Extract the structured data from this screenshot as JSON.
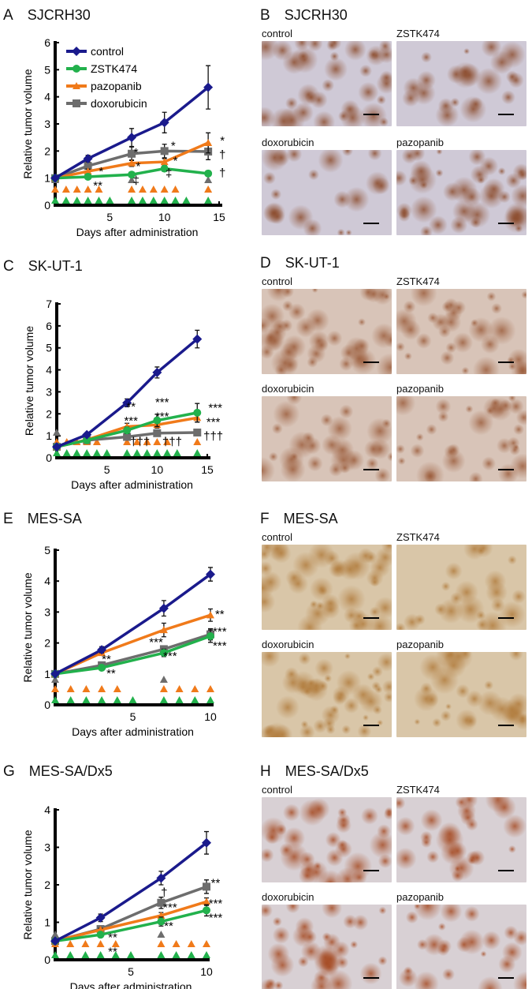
{
  "colors": {
    "control": "#1a1a8c",
    "ZSTK474": "#22b14c",
    "pazopanib": "#f07a1a",
    "doxorubicin": "#6d6d6d"
  },
  "chart_data": [
    {
      "panel": "A",
      "title": "SJCRH30",
      "type": "line",
      "xlabel": "Days after administration",
      "ylabel": "Relative tumor volume",
      "xlim": [
        0,
        15
      ],
      "ylim": [
        0,
        6
      ],
      "xticks": [
        5,
        10,
        15
      ],
      "yticks": [
        0,
        1,
        2,
        3,
        4,
        5,
        6
      ],
      "legend": "top-left",
      "series": [
        {
          "name": "control",
          "marker": "diamond",
          "x": [
            0,
            3,
            7,
            10,
            14
          ],
          "y": [
            1,
            1.72,
            2.5,
            3.05,
            4.35
          ],
          "err": [
            0,
            0.12,
            0.33,
            0.38,
            0.8
          ]
        },
        {
          "name": "ZSTK474",
          "marker": "circle",
          "x": [
            0,
            3,
            7,
            10,
            14
          ],
          "y": [
            1,
            1.05,
            1.13,
            1.35,
            1.17
          ],
          "err": [
            0,
            0.05,
            0.08,
            0.1,
            0.1
          ]
        },
        {
          "name": "pazopanib",
          "marker": "triangle",
          "x": [
            0,
            3,
            7,
            10,
            14
          ],
          "y": [
            1,
            1.25,
            1.55,
            1.6,
            2.3
          ],
          "err": [
            0,
            0.08,
            0.12,
            0.12,
            0.37
          ]
        },
        {
          "name": "doxorubicin",
          "marker": "square",
          "x": [
            0,
            3,
            7,
            10,
            14
          ],
          "y": [
            1,
            1.45,
            1.9,
            2.0,
            1.98
          ],
          "err": [
            0,
            0.1,
            0.25,
            0.25,
            0.3
          ]
        }
      ],
      "dosing": {
        "doxorubicin": [
          0,
          7,
          14
        ],
        "pazopanib": [
          0,
          1,
          2,
          3,
          4,
          7,
          8,
          9,
          10,
          11,
          14
        ],
        "ZSTK474": [
          0,
          1,
          2,
          3,
          4,
          5,
          7,
          8,
          9,
          10,
          11,
          12,
          14
        ]
      },
      "annotations": [
        {
          "text": "*",
          "x": 4.2,
          "y": 1.1
        },
        {
          "text": "**",
          "x": 3.9,
          "y": 0.75
        },
        {
          "text": "*",
          "x": 7.6,
          "y": 1.3
        },
        {
          "text": "*",
          "x": 7.4,
          "y": 1.8
        },
        {
          "text": "‡",
          "x": 7.4,
          "y": 0.95
        },
        {
          "text": "*",
          "x": 10.8,
          "y": 2.05
        },
        {
          "text": "*",
          "x": 11,
          "y": 1.5
        },
        {
          "text": "‡",
          "x": 10.4,
          "y": 1.05
        },
        {
          "text": "*",
          "x": 15.3,
          "y": 2.25
        },
        {
          "text": "†",
          "x": 15.3,
          "y": 1.8
        },
        {
          "text": "†",
          "x": 15.3,
          "y": 1.05
        }
      ]
    },
    {
      "panel": "C",
      "title": "SK-UT-1",
      "type": "line",
      "xlabel": "Days after administration",
      "ylabel": "Relative tumor volume",
      "xlim": [
        0,
        15
      ],
      "ylim": [
        0,
        7
      ],
      "xticks": [
        5,
        10,
        15
      ],
      "yticks": [
        0,
        1,
        2,
        3,
        4,
        5,
        6,
        7
      ],
      "series": [
        {
          "name": "control",
          "marker": "diamond",
          "x": [
            0,
            3,
            7,
            10,
            14
          ],
          "y": [
            0.5,
            1.05,
            2.5,
            3.88,
            5.4
          ],
          "err": [
            0,
            0.08,
            0.18,
            0.25,
            0.4
          ]
        },
        {
          "name": "ZSTK474",
          "marker": "circle",
          "x": [
            0,
            3,
            7,
            10,
            14
          ],
          "y": [
            0.5,
            0.8,
            1.25,
            1.7,
            2.05
          ],
          "err": [
            0,
            0.05,
            0.15,
            0.28,
            0.42
          ]
        },
        {
          "name": "pazopanib",
          "marker": "triangle",
          "x": [
            0,
            3,
            7,
            10,
            14
          ],
          "y": [
            0.5,
            0.82,
            1.42,
            1.5,
            1.82
          ],
          "err": [
            0,
            0.05,
            0.15,
            0.15,
            0.2
          ]
        },
        {
          "name": "doxorubicin",
          "marker": "square",
          "x": [
            0,
            3,
            7,
            10,
            14
          ],
          "y": [
            0.5,
            0.8,
            0.95,
            1.12,
            1.15
          ],
          "err": [
            0,
            0.05,
            0.1,
            0.08,
            0.05
          ]
        }
      ],
      "dosing": {
        "doxorubicin": [
          0,
          7,
          14
        ],
        "pazopanib": [
          0,
          1,
          2,
          3,
          4,
          7,
          8,
          9,
          10,
          11,
          14
        ],
        "ZSTK474": [
          0,
          1,
          2,
          3,
          4,
          5,
          7,
          8,
          9,
          10,
          11,
          12,
          14
        ]
      },
      "annotations": [
        {
          "text": "**",
          "x": 7.4,
          "y": 2.15
        },
        {
          "text": "***",
          "x": 7.4,
          "y": 1.8
        },
        {
          "text": "†††",
          "x": 8.3,
          "y": 0.55
        },
        {
          "text": "***",
          "x": 10.5,
          "y": 2.35
        },
        {
          "text": "***",
          "x": 10.5,
          "y": 2.05
        },
        {
          "text": "†††",
          "x": 11.5,
          "y": 0.55
        },
        {
          "text": "***",
          "x": 15.8,
          "y": 2.1
        },
        {
          "text": "***",
          "x": 15.6,
          "y": 1.7
        },
        {
          "text": "†††",
          "x": 15.6,
          "y": 1.0
        }
      ]
    },
    {
      "panel": "E",
      "title": "MES-SA",
      "type": "line",
      "xlabel": "Days after administration",
      "ylabel": "Relative tumor volume",
      "xlim": [
        0,
        10
      ],
      "ylim": [
        0,
        5
      ],
      "xticks": [
        5,
        10
      ],
      "yticks": [
        0,
        1,
        2,
        3,
        4,
        5
      ],
      "series": [
        {
          "name": "control",
          "marker": "diamond",
          "x": [
            0,
            3,
            7,
            10
          ],
          "y": [
            1,
            1.78,
            3.12,
            4.22
          ],
          "err": [
            0,
            0.1,
            0.25,
            0.22
          ]
        },
        {
          "name": "ZSTK474",
          "marker": "circle",
          "x": [
            0,
            3,
            7,
            10
          ],
          "y": [
            1,
            1.2,
            1.68,
            2.22
          ],
          "err": [
            0,
            0.05,
            0.12,
            0.2
          ]
        },
        {
          "name": "pazopanib",
          "marker": "triangle",
          "x": [
            0,
            3,
            7,
            10
          ],
          "y": [
            1,
            1.68,
            2.42,
            2.9
          ],
          "err": [
            0,
            0.08,
            0.22,
            0.2
          ]
        },
        {
          "name": "doxorubicin",
          "marker": "square",
          "x": [
            0,
            3,
            7,
            10
          ],
          "y": [
            1,
            1.28,
            1.8,
            2.28
          ],
          "err": [
            0,
            0.06,
            0.1,
            0.18
          ]
        }
      ],
      "dosing": {
        "doxorubicin": [
          0,
          7
        ],
        "pazopanib": [
          0,
          1,
          2,
          3,
          4,
          7,
          8,
          9,
          10
        ],
        "ZSTK474": [
          0,
          1,
          2,
          3,
          4,
          5,
          7,
          8,
          9,
          10
        ]
      },
      "annotations": [
        {
          "text": "**",
          "x": 3.3,
          "y": 1.35
        },
        {
          "text": "**",
          "x": 3.6,
          "y": 0.95
        },
        {
          "text": "***",
          "x": 6.5,
          "y": 1.9
        },
        {
          "text": "***",
          "x": 7.4,
          "y": 1.45
        },
        {
          "text": "**",
          "x": 10.6,
          "y": 2.8
        },
        {
          "text": "***",
          "x": 10.6,
          "y": 2.25
        },
        {
          "text": "***",
          "x": 10.6,
          "y": 1.95
        }
      ]
    },
    {
      "panel": "G",
      "title": "MES-SA/Dx5",
      "type": "line",
      "xlabel": "Days after administration",
      "ylabel": "Relative tumor volume",
      "xlim": [
        0,
        10
      ],
      "ylim": [
        0,
        4
      ],
      "xticks": [
        5,
        10
      ],
      "yticks": [
        0,
        1,
        2,
        3,
        4
      ],
      "series": [
        {
          "name": "control",
          "marker": "diamond",
          "x": [
            0,
            3,
            7,
            10
          ],
          "y": [
            0.5,
            1.12,
            2.18,
            3.12
          ],
          "err": [
            0,
            0.1,
            0.18,
            0.3
          ]
        },
        {
          "name": "ZSTK474",
          "marker": "circle",
          "x": [
            0,
            3,
            7,
            10
          ],
          "y": [
            0.5,
            0.67,
            1.02,
            1.32
          ],
          "err": [
            0,
            0.04,
            0.12,
            0.15
          ]
        },
        {
          "name": "pazopanib",
          "marker": "triangle",
          "x": [
            0,
            3,
            7,
            10
          ],
          "y": [
            0.5,
            0.8,
            1.18,
            1.55
          ],
          "err": [
            0,
            0.04,
            0.08,
            0.1
          ]
        },
        {
          "name": "doxorubicin",
          "marker": "square",
          "x": [
            0,
            3,
            7,
            10
          ],
          "y": [
            0.5,
            0.82,
            1.52,
            1.95
          ],
          "err": [
            0,
            0.05,
            0.15,
            0.18
          ]
        }
      ],
      "dosing": {
        "doxorubicin": [
          0,
          7
        ],
        "pazopanib": [
          0,
          1,
          2,
          3,
          4,
          7,
          8,
          9,
          10
        ],
        "ZSTK474": [
          0,
          1,
          2,
          3,
          4,
          5,
          7,
          8,
          9,
          10
        ]
      },
      "annotations": [
        {
          "text": "†",
          "x": 7.2,
          "y": 1.7
        },
        {
          "text": "***",
          "x": 7.6,
          "y": 1.3
        },
        {
          "text": "**",
          "x": 7.5,
          "y": 0.8
        },
        {
          "text": "**",
          "x": 3.8,
          "y": 0.5
        },
        {
          "text": "**",
          "x": 3.8,
          "y": 0.3
        },
        {
          "text": "**",
          "x": 10.6,
          "y": 1.95
        },
        {
          "text": "***",
          "x": 10.6,
          "y": 1.4
        },
        {
          "text": "***",
          "x": 10.6,
          "y": 1.05
        }
      ]
    }
  ],
  "ihc": [
    {
      "panel": "B",
      "title": "SJCRH30",
      "labels": [
        "control",
        "ZSTK474",
        "doxorubicin",
        "pazopanib"
      ],
      "bg": "#cfc9d6",
      "stain": "#8b4a2a",
      "density": [
        0.7,
        0.35,
        0.3,
        0.75
      ]
    },
    {
      "panel": "D",
      "title": "SK-UT-1",
      "labels": [
        "control",
        "ZSTK474",
        "doxorubicin",
        "pazopanib"
      ],
      "bg": "#d8c4b8",
      "stain": "#9a5a38",
      "density": [
        0.8,
        0.6,
        0.5,
        0.6
      ]
    },
    {
      "panel": "F",
      "title": "MES-SA",
      "labels": [
        "control",
        "ZSTK474",
        "doxorubicin",
        "pazopanib"
      ],
      "bg": "#d9c6a8",
      "stain": "#b07a3a",
      "density": [
        0.8,
        0.35,
        0.95,
        0.5
      ]
    },
    {
      "panel": "H",
      "title": "MES-SA/Dx5",
      "labels": [
        "control",
        "ZSTK474",
        "doxorubicin",
        "pazopanib"
      ],
      "bg": "#d8d0d4",
      "stain": "#a4471e",
      "density": [
        0.6,
        0.45,
        0.6,
        0.4
      ]
    }
  ]
}
